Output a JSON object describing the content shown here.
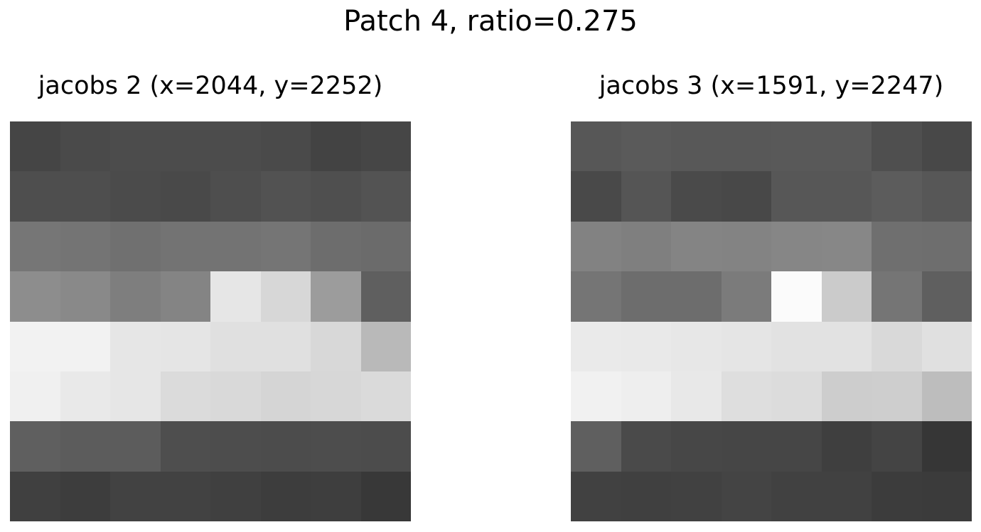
{
  "figure": {
    "suptitle": "Patch 4, ratio=0.275",
    "background_color": "#ffffff",
    "text_color": "#000000",
    "panels": [
      {
        "title": "jacobs 2 (x=2044, y=2252)"
      },
      {
        "title": "jacobs 3 (x=1591, y=2247)"
      }
    ]
  },
  "chart_data": [
    {
      "type": "heatmap",
      "title": "jacobs 2 (x=2044, y=2252)",
      "rows": 8,
      "cols": 8,
      "colormap": "gray",
      "value_range": [
        0,
        255
      ],
      "grid": false,
      "values": [
        [
          69,
          74,
          76,
          76,
          76,
          74,
          67,
          70
        ],
        [
          78,
          78,
          75,
          73,
          78,
          82,
          79,
          83
        ],
        [
          118,
          116,
          112,
          115,
          115,
          117,
          109,
          107
        ],
        [
          141,
          137,
          126,
          132,
          230,
          215,
          156,
          95
        ],
        [
          242,
          242,
          230,
          229,
          224,
          224,
          216,
          185
        ],
        [
          240,
          233,
          230,
          219,
          217,
          213,
          215,
          218
        ],
        [
          95,
          92,
          92,
          78,
          77,
          76,
          77,
          76
        ],
        [
          64,
          61,
          66,
          66,
          64,
          61,
          62,
          56
        ]
      ]
    },
    {
      "type": "heatmap",
      "title": "jacobs 3 (x=1591, y=2247)",
      "rows": 8,
      "cols": 8,
      "colormap": "gray",
      "value_range": [
        0,
        255
      ],
      "grid": false,
      "values": [
        [
          87,
          90,
          88,
          88,
          89,
          89,
          79,
          72
        ],
        [
          73,
          85,
          74,
          72,
          87,
          87,
          92,
          87
        ],
        [
          130,
          127,
          132,
          131,
          134,
          135,
          111,
          110
        ],
        [
          117,
          109,
          109,
          123,
          251,
          203,
          117,
          95
        ],
        [
          234,
          233,
          231,
          229,
          226,
          226,
          217,
          224
        ],
        [
          241,
          238,
          232,
          222,
          220,
          205,
          206,
          189
        ],
        [
          95,
          74,
          71,
          70,
          70,
          63,
          68,
          54
        ],
        [
          65,
          64,
          65,
          68,
          65,
          65,
          60,
          59
        ]
      ]
    }
  ]
}
